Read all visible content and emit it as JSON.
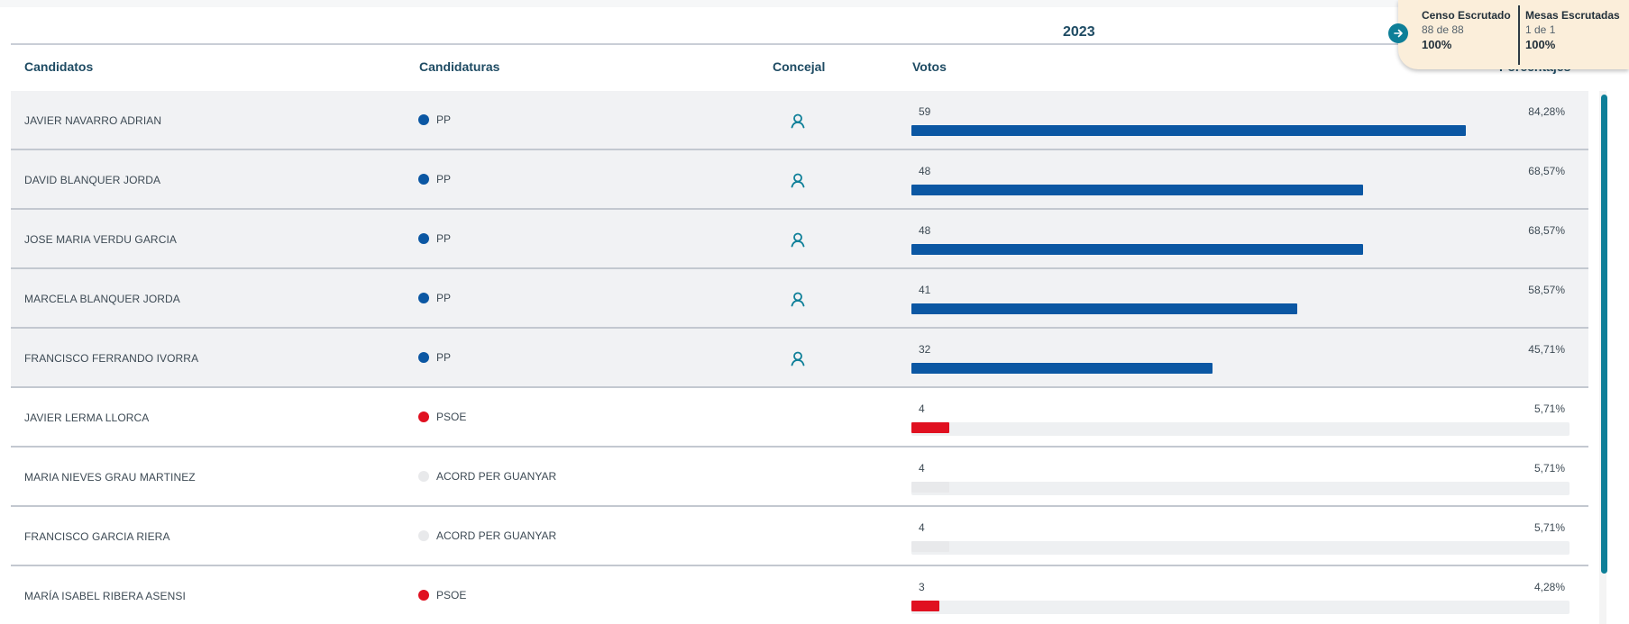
{
  "year": "2023",
  "columns": {
    "candidatos": "Candidatos",
    "candidaturas": "Candidaturas",
    "concejal": "Concejal",
    "votos": "Votos",
    "porcentajes": "Porcentajes"
  },
  "summary": {
    "censo_label": "Censo Escrutado",
    "censo_count": "88 de 88",
    "censo_pct": "100%",
    "mesas_label": "Mesas Escrutadas",
    "mesas_count": "1 de 1",
    "mesas_pct": "100%"
  },
  "colors": {
    "PP": "#0b57a3",
    "PSOE": "#e01020",
    "ACORD PER GUANYAR": "#e8e9eb",
    "accent": "#0e7f98",
    "header_text": "#1e4b63"
  },
  "rows": [
    {
      "candidate": "JAVIER NAVARRO ADRIAN",
      "party": "PP",
      "elected": true,
      "votes": "59",
      "percent": "84,28%",
      "fraction": 0.8428
    },
    {
      "candidate": "DAVID BLANQUER JORDA",
      "party": "PP",
      "elected": true,
      "votes": "48",
      "percent": "68,57%",
      "fraction": 0.6857
    },
    {
      "candidate": "JOSE MARIA VERDU GARCIA",
      "party": "PP",
      "elected": true,
      "votes": "48",
      "percent": "68,57%",
      "fraction": 0.6857
    },
    {
      "candidate": "MARCELA BLANQUER JORDA",
      "party": "PP",
      "elected": true,
      "votes": "41",
      "percent": "58,57%",
      "fraction": 0.5857
    },
    {
      "candidate": "FRANCISCO FERRANDO IVORRA",
      "party": "PP",
      "elected": true,
      "votes": "32",
      "percent": "45,71%",
      "fraction": 0.4571
    },
    {
      "candidate": "JAVIER LERMA LLORCA",
      "party": "PSOE",
      "elected": false,
      "votes": "4",
      "percent": "5,71%",
      "fraction": 0.0571
    },
    {
      "candidate": "MARIA NIEVES GRAU MARTINEZ",
      "party": "ACORD PER GUANYAR",
      "elected": false,
      "votes": "4",
      "percent": "5,71%",
      "fraction": 0.0571
    },
    {
      "candidate": "FRANCISCO GARCIA RIERA",
      "party": "ACORD PER GUANYAR",
      "elected": false,
      "votes": "4",
      "percent": "5,71%",
      "fraction": 0.0571
    },
    {
      "candidate": "MARÍA ISABEL RIBERA ASENSI",
      "party": "PSOE",
      "elected": false,
      "votes": "3",
      "percent": "4,28%",
      "fraction": 0.0428
    }
  ]
}
